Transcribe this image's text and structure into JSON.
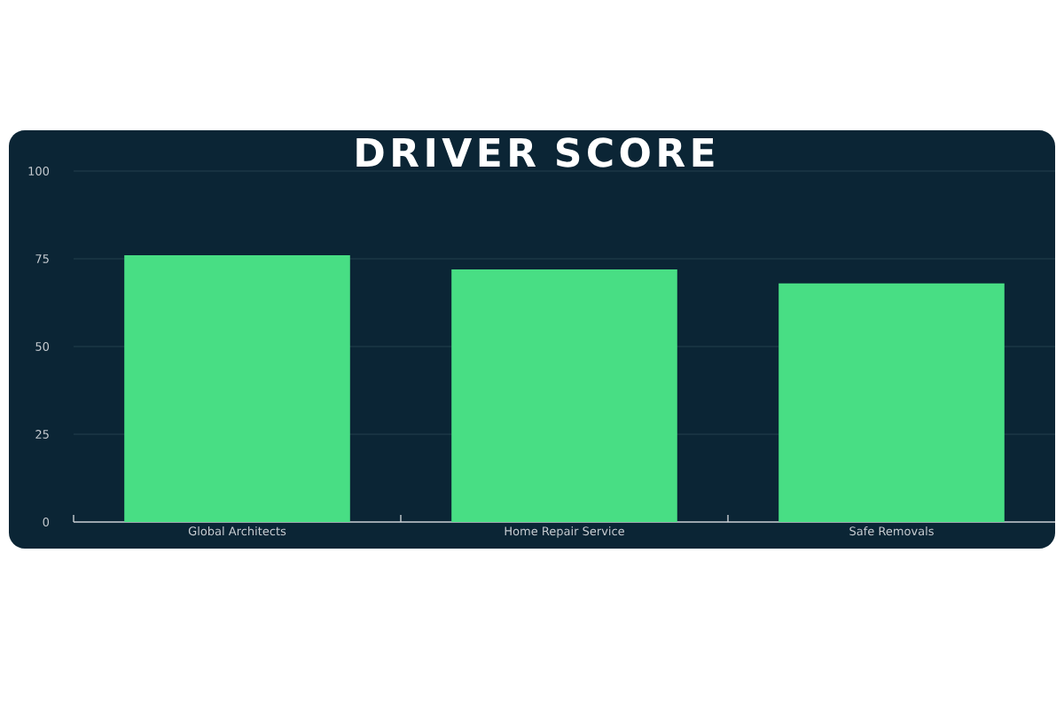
{
  "chart_data": {
    "type": "bar",
    "title": "DRIVER SCORE",
    "categories": [
      "Global Architects",
      "Home Repair Service",
      "Safe Removals"
    ],
    "values": [
      76,
      72,
      68
    ],
    "color": "#48de84",
    "ylim": [
      0,
      100
    ],
    "yticks": [
      0,
      25,
      50,
      75,
      100
    ],
    "grid": "y"
  }
}
